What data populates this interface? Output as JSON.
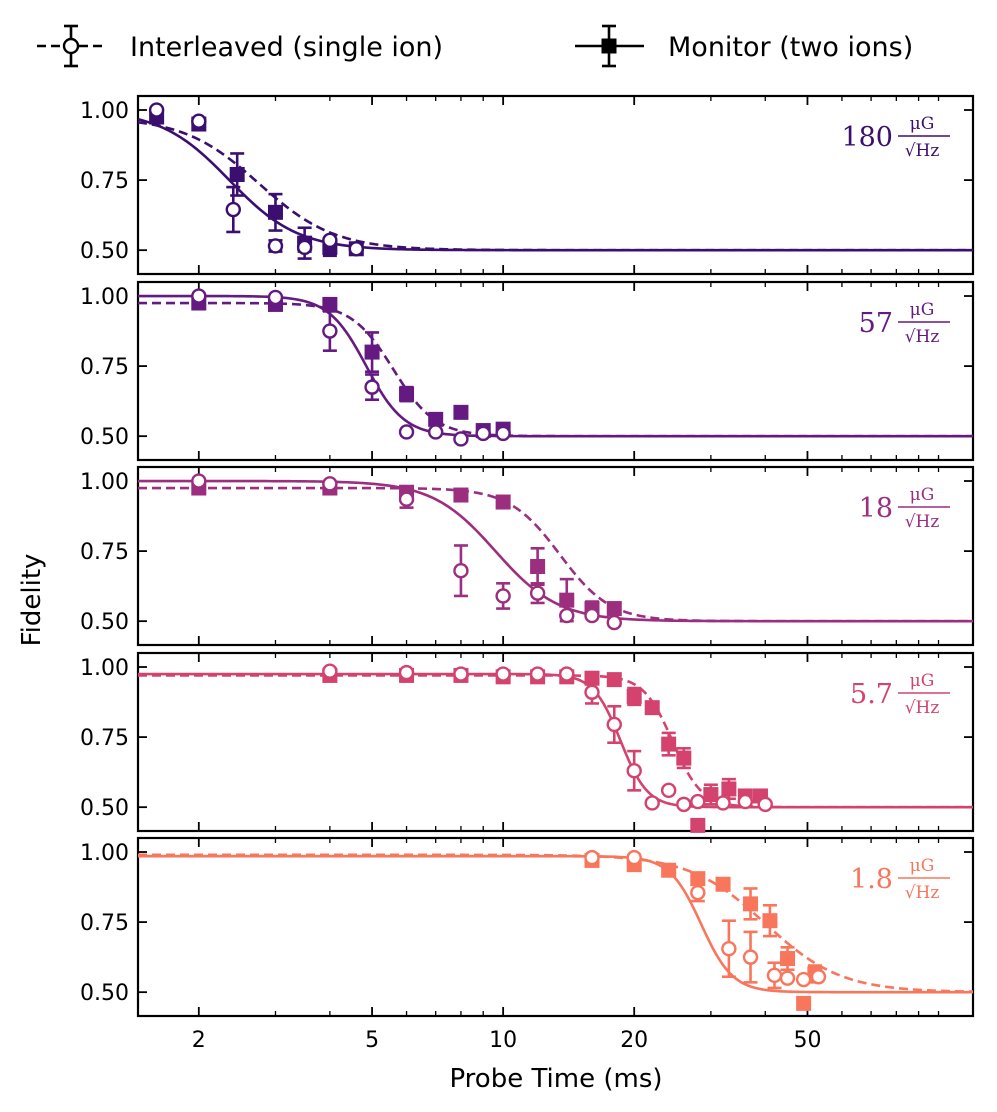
{
  "chart_data": {
    "type": "scatter",
    "xlabel": "Probe Time (ms)",
    "ylabel": "Fidelity",
    "xscale": "log",
    "xlim": [
      1.45,
      120
    ],
    "ylim": [
      0.415,
      1.05
    ],
    "xticks": [
      {
        "value": 2,
        "label": "2"
      },
      {
        "value": 5,
        "label": "5"
      },
      {
        "value": 10,
        "label": "10"
      },
      {
        "value": 20,
        "label": "20"
      },
      {
        "value": 50,
        "label": "50"
      }
    ],
    "yticks": [
      {
        "value": 1.0,
        "label": "1.00"
      },
      {
        "value": 0.75,
        "label": "0.75"
      },
      {
        "value": 0.5,
        "label": "0.50"
      }
    ],
    "legend": {
      "position": "top",
      "entries": [
        {
          "label": "Interleaved (single ion)",
          "marker": "open-circle",
          "line": "dashed"
        },
        {
          "label": "Monitor (two ions)",
          "marker": "filled-square",
          "line": "solid"
        }
      ]
    },
    "panels": [
      {
        "label": "180",
        "unit_num": "μG",
        "unit_den": "√Hz",
        "color": "#3b0f70",
        "interleaved_fit": {
          "t50": 2.35,
          "n": 5.5
        },
        "monitor_fit": {
          "t50": 2.75,
          "n": 5.0,
          "top": 0.975
        },
        "interleaved": [
          {
            "x": 1.6,
            "y": 1.0,
            "err": 0.0
          },
          {
            "x": 2.0,
            "y": 0.96,
            "err": 0.0
          },
          {
            "x": 2.4,
            "y": 0.645,
            "err": 0.08
          },
          {
            "x": 3.0,
            "y": 0.515,
            "err": 0.02
          },
          {
            "x": 3.5,
            "y": 0.51,
            "err": 0.015
          },
          {
            "x": 4.0,
            "y": 0.535,
            "err": 0.0
          },
          {
            "x": 4.6,
            "y": 0.505,
            "err": 0.0
          }
        ],
        "monitor": [
          {
            "x": 1.6,
            "y": 0.975,
            "err": 0.0
          },
          {
            "x": 2.0,
            "y": 0.95,
            "err": 0.0
          },
          {
            "x": 2.45,
            "y": 0.77,
            "err": 0.075
          },
          {
            "x": 3.0,
            "y": 0.635,
            "err": 0.065
          },
          {
            "x": 3.5,
            "y": 0.525,
            "err": 0.055
          },
          {
            "x": 4.0,
            "y": 0.51,
            "err": 0.03
          },
          {
            "x": 4.6,
            "y": 0.505,
            "err": 0.0
          }
        ]
      },
      {
        "label": "57",
        "unit_num": "μG",
        "unit_den": "√Hz",
        "color": "#641a80",
        "interleaved_fit": {
          "t50": 4.85,
          "n": 10.0
        },
        "monitor_fit": {
          "t50": 5.6,
          "n": 9.0,
          "top": 0.975
        },
        "interleaved": [
          {
            "x": 2.0,
            "y": 1.0,
            "err": 0.0
          },
          {
            "x": 3.0,
            "y": 0.995,
            "err": 0.0
          },
          {
            "x": 4.0,
            "y": 0.875,
            "err": 0.07
          },
          {
            "x": 5.0,
            "y": 0.675,
            "err": 0.045
          },
          {
            "x": 6.0,
            "y": 0.515,
            "err": 0.0
          },
          {
            "x": 7.0,
            "y": 0.515,
            "err": 0.0
          },
          {
            "x": 8.0,
            "y": 0.49,
            "err": 0.0
          },
          {
            "x": 9.0,
            "y": 0.51,
            "err": 0.0
          },
          {
            "x": 10.0,
            "y": 0.51,
            "err": 0.0
          }
        ],
        "monitor": [
          {
            "x": 2.0,
            "y": 0.975,
            "err": 0.0
          },
          {
            "x": 3.0,
            "y": 0.97,
            "err": 0.0
          },
          {
            "x": 4.0,
            "y": 0.97,
            "err": 0.0
          },
          {
            "x": 5.0,
            "y": 0.8,
            "err": 0.07
          },
          {
            "x": 6.0,
            "y": 0.65,
            "err": 0.025
          },
          {
            "x": 7.0,
            "y": 0.56,
            "err": 0.02
          },
          {
            "x": 8.0,
            "y": 0.585,
            "err": 0.02
          },
          {
            "x": 9.0,
            "y": 0.52,
            "err": 0.015
          },
          {
            "x": 10.0,
            "y": 0.525,
            "err": 0.0
          }
        ]
      },
      {
        "label": "18",
        "unit_num": "μG",
        "unit_den": "√Hz",
        "color": "#9c2e7f",
        "interleaved_fit": {
          "t50": 9.6,
          "n": 6.0
        },
        "monitor_fit": {
          "t50": 13.5,
          "n": 7.5,
          "top": 0.975
        },
        "interleaved": [
          {
            "x": 2.0,
            "y": 1.0,
            "err": 0.0
          },
          {
            "x": 4.0,
            "y": 0.99,
            "err": 0.0
          },
          {
            "x": 6.0,
            "y": 0.935,
            "err": 0.03
          },
          {
            "x": 8.0,
            "y": 0.68,
            "err": 0.09
          },
          {
            "x": 10.0,
            "y": 0.59,
            "err": 0.045
          },
          {
            "x": 12.0,
            "y": 0.6,
            "err": 0.035
          },
          {
            "x": 14.0,
            "y": 0.52,
            "err": 0.0
          },
          {
            "x": 16.0,
            "y": 0.52,
            "err": 0.0
          },
          {
            "x": 18.0,
            "y": 0.495,
            "err": 0.0
          }
        ],
        "monitor": [
          {
            "x": 2.0,
            "y": 0.975,
            "err": 0.0
          },
          {
            "x": 4.0,
            "y": 0.975,
            "err": 0.0
          },
          {
            "x": 6.0,
            "y": 0.96,
            "err": 0.0
          },
          {
            "x": 8.0,
            "y": 0.95,
            "err": 0.0
          },
          {
            "x": 10.0,
            "y": 0.925,
            "err": 0.015
          },
          {
            "x": 12.0,
            "y": 0.695,
            "err": 0.065
          },
          {
            "x": 14.0,
            "y": 0.575,
            "err": 0.075
          },
          {
            "x": 16.0,
            "y": 0.545,
            "err": 0.025
          },
          {
            "x": 18.0,
            "y": 0.545,
            "err": 0.0
          }
        ]
      },
      {
        "label": "5.7",
        "unit_num": "μG",
        "unit_den": "√Hz",
        "color": "#d3436e",
        "interleaved_fit": {
          "t50": 18.6,
          "n": 14.0,
          "top": 0.975
        },
        "monitor_fit": {
          "t50": 24.5,
          "n": 13.0,
          "top": 0.97
        },
        "interleaved": [
          {
            "x": 4.0,
            "y": 0.985,
            "err": 0.0
          },
          {
            "x": 6.0,
            "y": 0.98,
            "err": 0.0
          },
          {
            "x": 8.0,
            "y": 0.975,
            "err": 0.0
          },
          {
            "x": 10.0,
            "y": 0.975,
            "err": 0.0
          },
          {
            "x": 12.0,
            "y": 0.975,
            "err": 0.0
          },
          {
            "x": 14.0,
            "y": 0.975,
            "err": 0.0
          },
          {
            "x": 16.0,
            "y": 0.91,
            "err": 0.04
          },
          {
            "x": 18.0,
            "y": 0.795,
            "err": 0.065
          },
          {
            "x": 20.0,
            "y": 0.63,
            "err": 0.07
          },
          {
            "x": 22.0,
            "y": 0.515,
            "err": 0.0
          },
          {
            "x": 24.0,
            "y": 0.56,
            "err": 0.0
          },
          {
            "x": 26.0,
            "y": 0.51,
            "err": 0.0
          },
          {
            "x": 28.0,
            "y": 0.52,
            "err": 0.0
          },
          {
            "x": 32.0,
            "y": 0.515,
            "err": 0.0
          },
          {
            "x": 36.0,
            "y": 0.52,
            "err": 0.0
          },
          {
            "x": 40.0,
            "y": 0.51,
            "err": 0.0
          }
        ],
        "monitor": [
          {
            "x": 4.0,
            "y": 0.97,
            "err": 0.0
          },
          {
            "x": 6.0,
            "y": 0.97,
            "err": 0.0
          },
          {
            "x": 8.0,
            "y": 0.97,
            "err": 0.0
          },
          {
            "x": 10.0,
            "y": 0.965,
            "err": 0.0
          },
          {
            "x": 12.0,
            "y": 0.965,
            "err": 0.0
          },
          {
            "x": 14.0,
            "y": 0.965,
            "err": 0.0
          },
          {
            "x": 16.0,
            "y": 0.96,
            "err": 0.0
          },
          {
            "x": 18.0,
            "y": 0.955,
            "err": 0.0
          },
          {
            "x": 20.0,
            "y": 0.895,
            "err": 0.03
          },
          {
            "x": 22.0,
            "y": 0.855,
            "err": 0.02
          },
          {
            "x": 24.0,
            "y": 0.725,
            "err": 0.04
          },
          {
            "x": 26.0,
            "y": 0.675,
            "err": 0.035
          },
          {
            "x": 28.0,
            "y": 0.435,
            "err": 0.02
          },
          {
            "x": 30.0,
            "y": 0.545,
            "err": 0.035
          },
          {
            "x": 33.0,
            "y": 0.565,
            "err": 0.035
          },
          {
            "x": 36.0,
            "y": 0.54,
            "err": 0.02
          },
          {
            "x": 39.0,
            "y": 0.54,
            "err": 0.02
          }
        ]
      },
      {
        "label": "1.8",
        "unit_num": "μG",
        "unit_den": "√Hz",
        "color": "#f8765c",
        "interleaved_fit": {
          "t50": 28.5,
          "n": 12.0,
          "top": 0.985
        },
        "monitor_fit": {
          "t50": 40.0,
          "n": 5.0,
          "top": 0.99
        },
        "interleaved": [
          {
            "x": 16.0,
            "y": 0.98,
            "err": 0.0
          },
          {
            "x": 20.0,
            "y": 0.98,
            "err": 0.0
          },
          {
            "x": 28.0,
            "y": 0.855,
            "err": 0.03
          },
          {
            "x": 33.0,
            "y": 0.655,
            "err": 0.1
          },
          {
            "x": 37.0,
            "y": 0.625,
            "err": 0.09
          },
          {
            "x": 42.0,
            "y": 0.56,
            "err": 0.045
          },
          {
            "x": 45.0,
            "y": 0.55,
            "err": 0.0
          },
          {
            "x": 49.0,
            "y": 0.545,
            "err": 0.0
          },
          {
            "x": 53.0,
            "y": 0.555,
            "err": 0.0
          }
        ],
        "monitor": [
          {
            "x": 16.0,
            "y": 0.97,
            "err": 0.0
          },
          {
            "x": 20.0,
            "y": 0.955,
            "err": 0.0
          },
          {
            "x": 24.0,
            "y": 0.935,
            "err": 0.0
          },
          {
            "x": 28.0,
            "y": 0.905,
            "err": 0.0
          },
          {
            "x": 32.0,
            "y": 0.885,
            "err": 0.0
          },
          {
            "x": 37.0,
            "y": 0.815,
            "err": 0.055
          },
          {
            "x": 41.0,
            "y": 0.755,
            "err": 0.055
          },
          {
            "x": 45.0,
            "y": 0.62,
            "err": 0.04
          },
          {
            "x": 49.0,
            "y": 0.46,
            "err": 0.02
          },
          {
            "x": 52.0,
            "y": 0.565,
            "err": 0.03
          }
        ]
      }
    ]
  }
}
